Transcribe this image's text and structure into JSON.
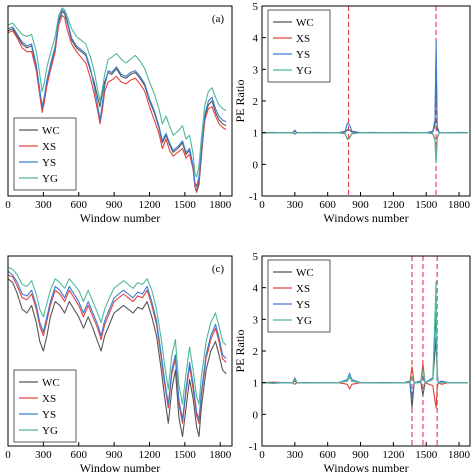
{
  "chart_data": [
    {
      "type": "line",
      "panel_label": "(a)",
      "xlabel": "Window number",
      "ylabel": "",
      "xlim": [
        0,
        1900
      ],
      "ylim": [
        0,
        1
      ],
      "xticks": [
        0,
        300,
        600,
        900,
        1200,
        1500,
        1800
      ],
      "legend_position": "bottom-left",
      "colors": {
        "WC": "#555555",
        "XS": "#e0443c",
        "YS": "#3a7bd5",
        "YG": "#4fb89a"
      },
      "x": [
        0,
        40,
        80,
        120,
        160,
        200,
        240,
        270,
        290,
        310,
        330,
        360,
        400,
        430,
        460,
        480,
        500,
        540,
        580,
        620,
        660,
        700,
        730,
        760,
        780,
        800,
        820,
        850,
        880,
        920,
        960,
        1000,
        1040,
        1080,
        1120,
        1160,
        1200,
        1240,
        1280,
        1310,
        1340,
        1370,
        1400,
        1440,
        1480,
        1510,
        1540,
        1570,
        1585,
        1600,
        1620,
        1640,
        1670,
        1700,
        1730,
        1760,
        1790,
        1820,
        1850
      ],
      "series": [
        {
          "name": "WC",
          "values": [
            0.87,
            0.88,
            0.84,
            0.8,
            0.78,
            0.79,
            0.68,
            0.55,
            0.46,
            0.52,
            0.6,
            0.68,
            0.78,
            0.92,
            0.97,
            0.96,
            0.92,
            0.82,
            0.78,
            0.76,
            0.74,
            0.66,
            0.6,
            0.52,
            0.47,
            0.54,
            0.6,
            0.65,
            0.64,
            0.67,
            0.63,
            0.62,
            0.64,
            0.65,
            0.62,
            0.58,
            0.5,
            0.44,
            0.36,
            0.28,
            0.32,
            0.27,
            0.23,
            0.25,
            0.28,
            0.22,
            0.24,
            0.15,
            0.05,
            0.02,
            0.06,
            0.2,
            0.42,
            0.48,
            0.5,
            0.44,
            0.4,
            0.38,
            0.37
          ]
        },
        {
          "name": "XS",
          "values": [
            0.86,
            0.87,
            0.83,
            0.78,
            0.76,
            0.76,
            0.66,
            0.53,
            0.44,
            0.5,
            0.58,
            0.66,
            0.76,
            0.9,
            0.95,
            0.94,
            0.88,
            0.8,
            0.76,
            0.73,
            0.7,
            0.62,
            0.54,
            0.45,
            0.38,
            0.45,
            0.55,
            0.6,
            0.61,
            0.63,
            0.6,
            0.59,
            0.61,
            0.62,
            0.59,
            0.55,
            0.47,
            0.4,
            0.33,
            0.25,
            0.3,
            0.24,
            0.21,
            0.23,
            0.25,
            0.2,
            0.22,
            0.14,
            0.05,
            0.03,
            0.08,
            0.22,
            0.4,
            0.46,
            0.47,
            0.42,
            0.38,
            0.36,
            0.35
          ]
        },
        {
          "name": "YS",
          "values": [
            0.88,
            0.89,
            0.85,
            0.81,
            0.79,
            0.8,
            0.69,
            0.56,
            0.47,
            0.53,
            0.61,
            0.69,
            0.79,
            0.93,
            0.98,
            0.97,
            0.93,
            0.83,
            0.79,
            0.77,
            0.75,
            0.67,
            0.58,
            0.48,
            0.4,
            0.48,
            0.58,
            0.66,
            0.65,
            0.68,
            0.64,
            0.63,
            0.65,
            0.66,
            0.63,
            0.59,
            0.51,
            0.45,
            0.37,
            0.29,
            0.33,
            0.28,
            0.24,
            0.26,
            0.29,
            0.23,
            0.25,
            0.16,
            0.07,
            0.05,
            0.1,
            0.24,
            0.43,
            0.5,
            0.52,
            0.46,
            0.42,
            0.4,
            0.39
          ]
        },
        {
          "name": "YG",
          "values": [
            0.9,
            0.91,
            0.88,
            0.85,
            0.84,
            0.85,
            0.76,
            0.64,
            0.55,
            0.6,
            0.68,
            0.75,
            0.84,
            0.95,
            0.99,
            0.98,
            0.95,
            0.88,
            0.84,
            0.82,
            0.8,
            0.73,
            0.66,
            0.56,
            0.5,
            0.56,
            0.64,
            0.72,
            0.73,
            0.75,
            0.72,
            0.7,
            0.72,
            0.74,
            0.71,
            0.67,
            0.6,
            0.54,
            0.46,
            0.38,
            0.42,
            0.37,
            0.32,
            0.34,
            0.37,
            0.3,
            0.32,
            0.22,
            0.12,
            0.1,
            0.16,
            0.3,
            0.48,
            0.55,
            0.57,
            0.52,
            0.48,
            0.46,
            0.45
          ]
        }
      ]
    },
    {
      "type": "line",
      "xlabel": "Windows number",
      "ylabel": "PE Ratio",
      "xlim": [
        0,
        1900
      ],
      "ylim": [
        -1,
        5
      ],
      "xticks": [
        0,
        300,
        600,
        900,
        1200,
        1500,
        1800
      ],
      "yticks": [
        -1,
        0,
        1,
        2,
        3,
        4,
        5
      ],
      "legend_position": "top-left",
      "colors": {
        "WC": "#555555",
        "XS": "#e0443c",
        "YS": "#3a7bd5",
        "YG": "#4fb89a"
      },
      "vlines": [
        790,
        1590
      ],
      "x": [
        0,
        100,
        200,
        280,
        300,
        320,
        400,
        500,
        600,
        700,
        760,
        780,
        800,
        820,
        900,
        1000,
        1100,
        1200,
        1300,
        1400,
        1500,
        1560,
        1580,
        1590,
        1600,
        1620,
        1700,
        1800,
        1880
      ],
      "series": [
        {
          "name": "WC",
          "values": [
            1.0,
            0.99,
            1.0,
            1.0,
            0.97,
            1.0,
            1.0,
            0.99,
            1.0,
            1.0,
            1.02,
            1.1,
            1.08,
            1.02,
            1.0,
            0.99,
            1.0,
            1.0,
            0.99,
            1.0,
            1.0,
            1.02,
            1.25,
            3.4,
            1.1,
            1.0,
            1.0,
            0.99,
            1.0
          ]
        },
        {
          "name": "XS",
          "values": [
            1.0,
            1.01,
            1.0,
            1.0,
            1.05,
            1.0,
            1.0,
            1.01,
            1.0,
            1.0,
            0.97,
            0.8,
            0.85,
            0.97,
            1.0,
            1.01,
            1.0,
            1.0,
            1.01,
            1.0,
            1.0,
            0.97,
            0.8,
            0.1,
            0.85,
            1.0,
            1.0,
            1.01,
            1.0
          ]
        },
        {
          "name": "YS",
          "values": [
            1.0,
            1.0,
            1.0,
            1.0,
            1.08,
            1.0,
            1.0,
            1.0,
            1.0,
            1.0,
            1.05,
            1.3,
            1.25,
            1.05,
            1.0,
            1.0,
            1.0,
            1.0,
            1.0,
            1.0,
            1.0,
            1.05,
            1.4,
            3.9,
            1.2,
            1.0,
            1.0,
            1.0,
            1.0
          ]
        },
        {
          "name": "YG",
          "values": [
            1.0,
            0.99,
            1.0,
            1.0,
            0.95,
            1.0,
            1.0,
            0.99,
            1.0,
            1.0,
            0.96,
            0.78,
            0.82,
            0.96,
            1.0,
            0.99,
            1.0,
            1.0,
            0.99,
            1.0,
            1.0,
            0.96,
            0.75,
            0.05,
            0.8,
            1.0,
            1.0,
            0.99,
            1.0
          ]
        }
      ]
    },
    {
      "type": "line",
      "panel_label": "(c)",
      "xlabel": "Window number",
      "ylabel": "",
      "xlim": [
        0,
        1900
      ],
      "ylim": [
        0,
        1
      ],
      "xticks": [
        0,
        300,
        600,
        900,
        1200,
        1500,
        1800
      ],
      "legend_position": "bottom-left",
      "colors": {
        "WC": "#555555",
        "XS": "#e0443c",
        "YS": "#3a7bd5",
        "YG": "#4fb89a"
      },
      "x": [
        0,
        40,
        80,
        120,
        160,
        200,
        240,
        270,
        300,
        330,
        360,
        400,
        440,
        480,
        520,
        560,
        600,
        640,
        680,
        720,
        760,
        790,
        820,
        860,
        900,
        940,
        980,
        1020,
        1060,
        1100,
        1140,
        1180,
        1220,
        1260,
        1300,
        1330,
        1360,
        1390,
        1420,
        1450,
        1480,
        1510,
        1540,
        1570,
        1600,
        1620,
        1640,
        1680,
        1720,
        1760,
        1790,
        1820,
        1850
      ],
      "series": [
        {
          "name": "WC",
          "values": [
            0.88,
            0.86,
            0.8,
            0.72,
            0.7,
            0.74,
            0.65,
            0.55,
            0.5,
            0.58,
            0.68,
            0.76,
            0.74,
            0.7,
            0.76,
            0.72,
            0.68,
            0.62,
            0.68,
            0.62,
            0.55,
            0.5,
            0.58,
            0.64,
            0.7,
            0.72,
            0.74,
            0.72,
            0.7,
            0.73,
            0.72,
            0.76,
            0.68,
            0.58,
            0.4,
            0.25,
            0.12,
            0.3,
            0.4,
            0.15,
            0.05,
            0.2,
            0.35,
            0.25,
            0.1,
            0.05,
            0.2,
            0.4,
            0.5,
            0.55,
            0.48,
            0.4,
            0.38
          ]
        },
        {
          "name": "XS",
          "values": [
            0.9,
            0.89,
            0.84,
            0.78,
            0.77,
            0.8,
            0.72,
            0.63,
            0.58,
            0.66,
            0.74,
            0.82,
            0.8,
            0.76,
            0.82,
            0.78,
            0.74,
            0.68,
            0.74,
            0.68,
            0.62,
            0.56,
            0.64,
            0.7,
            0.76,
            0.78,
            0.8,
            0.78,
            0.76,
            0.79,
            0.78,
            0.82,
            0.74,
            0.64,
            0.46,
            0.32,
            0.2,
            0.38,
            0.46,
            0.22,
            0.12,
            0.28,
            0.42,
            0.3,
            0.16,
            0.12,
            0.26,
            0.46,
            0.56,
            0.62,
            0.55,
            0.46,
            0.44
          ]
        },
        {
          "name": "YS",
          "values": [
            0.92,
            0.9,
            0.86,
            0.8,
            0.79,
            0.82,
            0.74,
            0.65,
            0.6,
            0.68,
            0.76,
            0.84,
            0.82,
            0.78,
            0.84,
            0.8,
            0.76,
            0.7,
            0.76,
            0.7,
            0.64,
            0.58,
            0.66,
            0.72,
            0.78,
            0.8,
            0.82,
            0.8,
            0.78,
            0.81,
            0.8,
            0.84,
            0.76,
            0.66,
            0.48,
            0.34,
            0.22,
            0.4,
            0.48,
            0.24,
            0.14,
            0.3,
            0.44,
            0.33,
            0.18,
            0.14,
            0.28,
            0.48,
            0.58,
            0.64,
            0.57,
            0.48,
            0.46
          ]
        },
        {
          "name": "YG",
          "values": [
            0.94,
            0.93,
            0.9,
            0.85,
            0.84,
            0.87,
            0.8,
            0.72,
            0.68,
            0.75,
            0.82,
            0.88,
            0.86,
            0.83,
            0.88,
            0.85,
            0.82,
            0.76,
            0.82,
            0.76,
            0.7,
            0.65,
            0.72,
            0.78,
            0.83,
            0.85,
            0.87,
            0.85,
            0.83,
            0.86,
            0.85,
            0.88,
            0.82,
            0.72,
            0.56,
            0.42,
            0.3,
            0.48,
            0.56,
            0.32,
            0.22,
            0.38,
            0.52,
            0.4,
            0.26,
            0.22,
            0.36,
            0.55,
            0.65,
            0.7,
            0.63,
            0.55,
            0.53
          ]
        }
      ]
    },
    {
      "type": "line",
      "xlabel": "Windows number",
      "ylabel": "PE Ratio",
      "xlim": [
        0,
        1900
      ],
      "ylim": [
        -1,
        5
      ],
      "xticks": [
        0,
        300,
        600,
        900,
        1200,
        1500,
        1800
      ],
      "yticks": [
        -1,
        0,
        1,
        2,
        3,
        4,
        5
      ],
      "legend_position": "top-left",
      "colors": {
        "WC": "#555555",
        "XS": "#e0443c",
        "YS": "#3a7bd5",
        "YG": "#4fb89a"
      },
      "vlines": [
        1370,
        1470,
        1600
      ],
      "x": [
        0,
        100,
        200,
        280,
        300,
        320,
        400,
        500,
        600,
        700,
        780,
        800,
        820,
        900,
        1000,
        1100,
        1200,
        1300,
        1350,
        1370,
        1390,
        1450,
        1470,
        1490,
        1560,
        1590,
        1600,
        1610,
        1640,
        1700,
        1800,
        1880
      ],
      "series": [
        {
          "name": "WC",
          "values": [
            1.0,
            0.98,
            1.0,
            1.0,
            1.05,
            1.0,
            0.99,
            1.0,
            1.0,
            1.0,
            1.05,
            1.2,
            1.05,
            1.0,
            1.0,
            0.99,
            1.0,
            1.0,
            1.05,
            0.2,
            1.0,
            1.05,
            0.6,
            1.0,
            1.1,
            2.4,
            1.2,
            1.0,
            1.05,
            1.0,
            1.0,
            1.0
          ]
        },
        {
          "name": "XS",
          "values": [
            1.0,
            1.02,
            1.0,
            1.0,
            0.95,
            1.0,
            1.01,
            1.0,
            1.0,
            1.0,
            0.95,
            0.8,
            0.95,
            1.0,
            1.0,
            1.01,
            1.0,
            1.0,
            1.0,
            1.5,
            1.0,
            1.0,
            1.6,
            1.0,
            0.9,
            0.2,
            0.85,
            1.0,
            0.95,
            1.0,
            1.0,
            1.0
          ]
        },
        {
          "name": "YS",
          "values": [
            1.0,
            1.0,
            1.0,
            1.0,
            1.15,
            1.0,
            1.0,
            1.0,
            1.0,
            1.0,
            1.1,
            1.3,
            1.1,
            1.0,
            1.0,
            1.0,
            1.0,
            1.0,
            1.05,
            0.5,
            1.0,
            1.05,
            1.2,
            1.0,
            1.15,
            3.2,
            1.3,
            1.0,
            1.05,
            1.0,
            1.0,
            1.0
          ]
        },
        {
          "name": "YG",
          "values": [
            1.0,
            0.99,
            1.0,
            1.0,
            1.1,
            1.0,
            1.0,
            1.0,
            1.0,
            1.0,
            1.05,
            1.25,
            1.05,
            1.0,
            1.0,
            1.0,
            1.0,
            1.0,
            1.0,
            1.2,
            1.0,
            1.0,
            1.4,
            1.0,
            1.1,
            4.2,
            1.1,
            1.0,
            1.0,
            1.0,
            1.0,
            1.0
          ]
        }
      ]
    }
  ]
}
